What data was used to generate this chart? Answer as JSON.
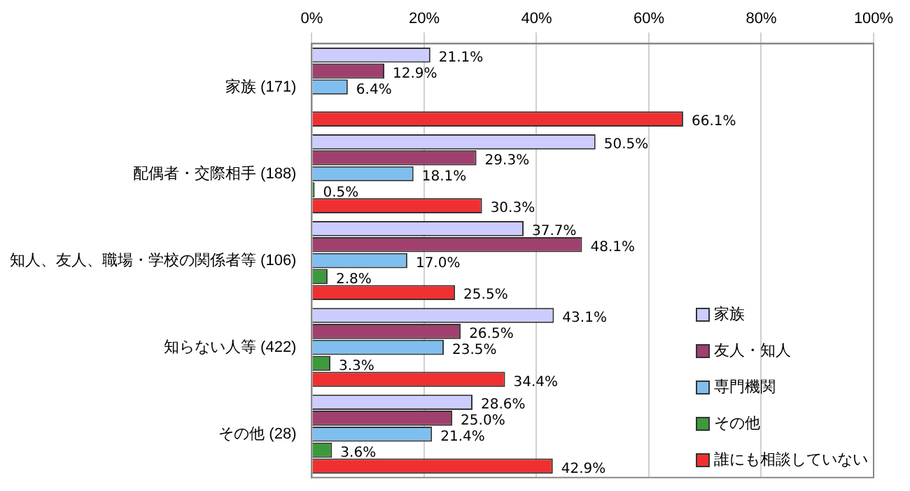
{
  "chart_data": {
    "type": "bar",
    "orientation": "horizontal",
    "categories": [
      "家族 (171)",
      "配偶者・交際相手 (188)",
      "知人、友人、職場・学校の関係者等 (106)",
      "知らない人等 (422)",
      "その他 (28)"
    ],
    "series": [
      {
        "name": "家族",
        "color": "#ccccff",
        "values": [
          21.1,
          50.5,
          37.7,
          43.1,
          28.6
        ],
        "value_labels": [
          "21.1%",
          "50.5%",
          "37.7%",
          "43.1%",
          "28.6%"
        ]
      },
      {
        "name": "友人・知人",
        "color": "#a0406e",
        "values": [
          12.9,
          29.3,
          48.1,
          26.5,
          25.0
        ],
        "value_labels": [
          "12.9%",
          "29.3%",
          "48.1%",
          "26.5%",
          "25.0%"
        ]
      },
      {
        "name": "専門機関",
        "color": "#7fbff0",
        "values": [
          6.4,
          18.1,
          17.0,
          23.5,
          21.4
        ],
        "value_labels": [
          "6.4%",
          "18.1%",
          "17.0%",
          "23.5%",
          "21.4%"
        ]
      },
      {
        "name": "その他",
        "color": "#3c9a3c",
        "values": [
          null,
          0.5,
          2.8,
          3.3,
          3.6
        ],
        "value_labels": [
          null,
          "0.5%",
          "2.8%",
          "3.3%",
          "3.6%"
        ]
      },
      {
        "name": "誰にも相談していない",
        "color": "#f03030",
        "values": [
          66.1,
          30.3,
          25.5,
          34.4,
          42.9
        ],
        "value_labels": [
          "66.1%",
          "30.3%",
          "25.5%",
          "34.4%",
          "42.9%"
        ]
      }
    ],
    "xlim": [
      0,
      100
    ],
    "xticks": [
      {
        "value": 0,
        "label": "0%"
      },
      {
        "value": 20,
        "label": "20%"
      },
      {
        "value": 40,
        "label": "40%"
      },
      {
        "value": 60,
        "label": "60%"
      },
      {
        "value": 80,
        "label": "80%"
      },
      {
        "value": 100,
        "label": "100%"
      }
    ],
    "grid": "x",
    "legend": "bottom right"
  }
}
